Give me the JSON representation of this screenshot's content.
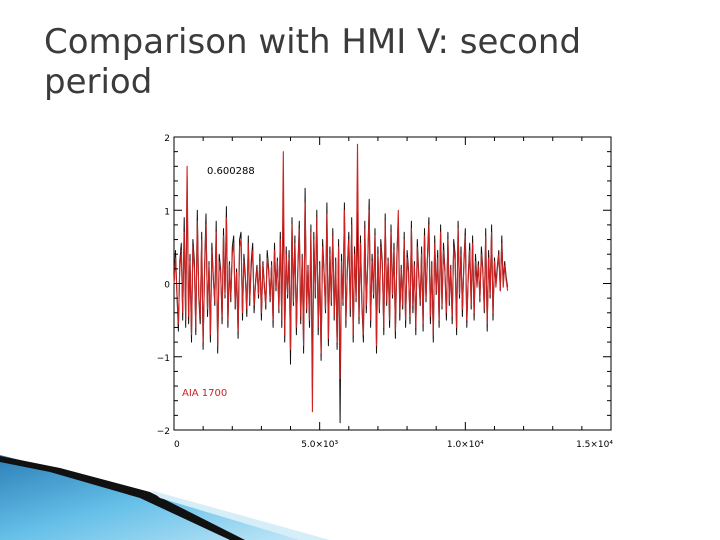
{
  "slide": {
    "title": "Comparison with HMI V: second period"
  },
  "chart_data": {
    "type": "line",
    "title": "",
    "xlabel": "",
    "ylabel": "",
    "xlim": [
      0,
      15000
    ],
    "ylim": [
      -2,
      2
    ],
    "x_ticks": [
      {
        "value": 0,
        "label": "0"
      },
      {
        "value": 5000,
        "label": "5.0×10³"
      },
      {
        "value": 10000,
        "label": "1.0×10⁴"
      },
      {
        "value": 15000,
        "label": "1.5×10⁴"
      }
    ],
    "y_ticks": [
      {
        "value": -2,
        "label": "−2"
      },
      {
        "value": -1,
        "label": "−1"
      },
      {
        "value": 0,
        "label": "0"
      },
      {
        "value": 1,
        "label": "1"
      },
      {
        "value": 2,
        "label": "2"
      }
    ],
    "grid": false,
    "annotations": [
      {
        "text": "0.600288",
        "color": "#000000"
      },
      {
        "text": "AIA 1700",
        "color": "#cc2222"
      }
    ],
    "x_step": 50,
    "series": [
      {
        "name": "",
        "color": "#111111",
        "values": [
          0.0,
          0.45,
          -0.15,
          -0.65,
          0.3,
          0.55,
          -0.5,
          0.9,
          -0.6,
          1.45,
          -0.55,
          0.4,
          -0.8,
          0.6,
          0.3,
          -0.7,
          1.0,
          -0.2,
          -0.55,
          0.7,
          -0.9,
          0.25,
          0.95,
          -0.45,
          0.3,
          -0.8,
          0.55,
          0.1,
          -0.3,
          0.85,
          -0.95,
          0.4,
          0.2,
          -0.55,
          0.75,
          -0.2,
          1.05,
          -0.6,
          0.3,
          -0.25,
          0.5,
          0.65,
          -0.35,
          0.2,
          -0.75,
          0.6,
          0.7,
          -0.5,
          0.4,
          0.1,
          -0.45,
          0.65,
          -0.3,
          0.3,
          0.55,
          -0.4,
          0.05,
          0.25,
          -0.2,
          0.4,
          -0.5,
          0.3,
          0.0,
          -0.35,
          0.45,
          0.2,
          -0.25,
          0.3,
          -0.6,
          0.55,
          -0.1,
          0.35,
          -0.4,
          0.7,
          -0.6,
          1.2,
          -0.8,
          0.5,
          -0.2,
          0.45,
          -1.1,
          0.9,
          -0.3,
          0.65,
          -0.7,
          0.2,
          0.85,
          -0.55,
          0.4,
          -0.95,
          1.3,
          -0.4,
          0.25,
          -0.6,
          0.8,
          -1.4,
          0.7,
          -0.2,
          1.0,
          -0.7,
          0.3,
          -1.05,
          0.6,
          0.2,
          -0.4,
          1.1,
          -0.85,
          0.5,
          -0.3,
          0.75,
          -0.5,
          0.35,
          -0.9,
          0.6,
          -1.9,
          0.4,
          -0.3,
          1.1,
          -0.6,
          0.2,
          0.7,
          -0.45,
          0.9,
          -0.8,
          0.5,
          -0.25,
          1.0,
          -0.55,
          0.65,
          -0.3,
          -0.8,
          0.85,
          -0.4,
          0.3,
          1.15,
          -0.6,
          0.4,
          -0.2,
          0.75,
          -0.95,
          0.5,
          -0.4,
          0.6,
          0.3,
          -0.7,
          0.95,
          -0.3,
          0.35,
          -0.6,
          0.8,
          -0.2,
          0.55,
          -0.75,
          0.4,
          0.9,
          -0.5,
          0.25,
          -0.35,
          0.7,
          -0.6,
          0.45,
          0.2,
          -0.55,
          0.85,
          -0.4,
          0.3,
          -0.7,
          0.6,
          0.15,
          -0.3,
          0.5,
          -0.65,
          0.75,
          -0.25,
          0.4,
          0.9,
          -0.55,
          0.3,
          -0.8,
          0.65,
          -0.15,
          0.45,
          -0.6,
          0.8,
          -0.35,
          0.55,
          0.2,
          -0.5,
          0.7,
          -0.3,
          0.25,
          -0.55,
          0.6,
          0.4,
          -0.7,
          0.85,
          -0.2,
          0.5,
          -0.45,
          0.3,
          0.75,
          -0.6,
          0.1,
          0.55,
          -0.35,
          0.65,
          -0.5,
          0.4,
          0.0,
          0.3,
          -0.25,
          0.5,
          0.2,
          -0.4,
          0.75,
          -0.65,
          0.45,
          -0.2,
          0.8,
          -0.5,
          0.35,
          0.0,
          0.25,
          0.45,
          -0.1,
          0.65,
          0.0,
          0.3,
          0.1,
          -0.05
        ]
      },
      {
        "name": "AIA 1700",
        "color": "#cc2222",
        "values": [
          0.0,
          0.35,
          -0.1,
          -0.55,
          0.2,
          0.45,
          -0.4,
          0.7,
          -0.5,
          1.6,
          -0.45,
          0.3,
          -0.7,
          0.5,
          0.2,
          -0.6,
          0.85,
          -0.15,
          -0.45,
          0.6,
          -0.8,
          0.15,
          0.8,
          -0.35,
          0.25,
          -0.7,
          0.45,
          0.05,
          -0.25,
          0.7,
          -0.85,
          0.3,
          0.15,
          -0.45,
          0.65,
          -0.15,
          0.9,
          -0.5,
          0.25,
          -0.2,
          0.4,
          0.55,
          -0.3,
          0.15,
          -0.65,
          0.5,
          0.6,
          -0.4,
          0.3,
          0.05,
          -0.35,
          0.55,
          -0.25,
          0.2,
          0.45,
          -0.3,
          0.0,
          0.2,
          -0.15,
          0.3,
          -0.4,
          0.25,
          -0.05,
          -0.3,
          0.35,
          0.15,
          -0.2,
          0.25,
          -0.5,
          0.45,
          -0.05,
          0.3,
          -0.35,
          0.6,
          -0.5,
          1.8,
          -0.7,
          0.4,
          -0.15,
          0.35,
          -0.9,
          0.8,
          -0.25,
          0.55,
          -0.6,
          0.15,
          0.75,
          -0.45,
          0.35,
          -0.85,
          1.1,
          -0.35,
          0.2,
          -0.5,
          0.7,
          -1.75,
          0.6,
          -0.15,
          0.9,
          -0.6,
          0.25,
          -0.95,
          0.5,
          0.15,
          -0.35,
          0.95,
          -0.75,
          0.4,
          -0.25,
          0.65,
          -0.45,
          0.3,
          -0.8,
          0.5,
          -1.3,
          0.3,
          -0.25,
          1.0,
          -0.5,
          0.15,
          0.6,
          -0.35,
          0.8,
          -0.7,
          0.4,
          -0.2,
          1.9,
          -0.45,
          0.55,
          -0.25,
          -0.7,
          0.75,
          -0.3,
          0.25,
          1.0,
          -0.5,
          0.3,
          -0.15,
          0.65,
          -0.85,
          0.4,
          -0.35,
          0.5,
          0.25,
          -0.6,
          0.85,
          -0.25,
          0.3,
          -0.5,
          0.7,
          -0.15,
          0.45,
          -0.65,
          0.35,
          1.0,
          -0.4,
          0.2,
          -0.3,
          0.6,
          -0.5,
          0.35,
          0.15,
          -0.45,
          0.75,
          -0.3,
          0.25,
          -0.6,
          0.5,
          0.1,
          -0.25,
          0.4,
          -0.55,
          0.65,
          -0.2,
          0.35,
          0.8,
          -0.45,
          0.25,
          -0.7,
          0.55,
          -0.1,
          0.35,
          -0.5,
          0.7,
          -0.3,
          0.45,
          0.15,
          -0.4,
          0.6,
          -0.25,
          0.2,
          -0.45,
          0.5,
          0.3,
          -0.6,
          0.75,
          -0.15,
          0.4,
          -0.35,
          0.25,
          0.65,
          -0.5,
          0.05,
          0.45,
          -0.3,
          0.55,
          -0.4,
          0.3,
          -0.05,
          0.25,
          -0.2,
          0.4,
          0.15,
          -0.35,
          0.65,
          -0.55,
          0.35,
          -0.15,
          0.7,
          -0.4,
          0.3,
          -0.05,
          0.2,
          0.4,
          -0.1,
          0.55,
          -0.05,
          0.25,
          0.05,
          -0.1
        ]
      }
    ]
  }
}
